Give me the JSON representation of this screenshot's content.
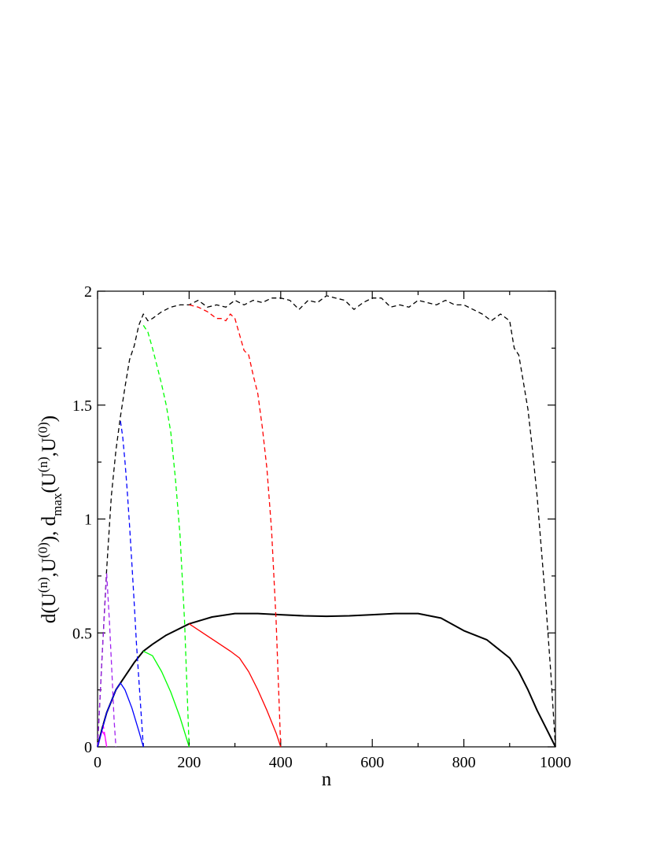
{
  "chart_data": {
    "type": "line",
    "title": "",
    "xlabel": "n",
    "ylabel_parts": [
      "d(U",
      "(n)",
      ",U",
      "(0)",
      "), d",
      "max",
      "(U",
      "(n)",
      ",U",
      "(0)",
      ")"
    ],
    "xlim": [
      0,
      1000
    ],
    "ylim": [
      0,
      2
    ],
    "x_ticks": [
      0,
      200,
      400,
      600,
      800,
      1000
    ],
    "y_ticks": [
      0,
      0.5,
      1,
      1.5,
      2
    ],
    "x_tick_labels": [
      "0",
      "200",
      "400",
      "600",
      "800",
      "1000"
    ],
    "y_tick_labels": [
      "0",
      "0.5",
      "1",
      "1.5",
      "2"
    ],
    "grid": false,
    "legend": "none",
    "series": [
      {
        "color": "#000000",
        "style": "solid",
        "x": [
          0,
          10,
          20,
          30,
          40,
          50,
          60,
          80,
          100,
          120,
          150,
          200,
          250,
          300,
          350,
          400,
          450,
          500,
          550,
          600,
          650,
          700,
          750,
          800,
          850,
          900,
          920,
          940,
          960,
          980,
          1000
        ],
        "y": [
          0,
          0.08,
          0.15,
          0.2,
          0.25,
          0.28,
          0.31,
          0.37,
          0.42,
          0.45,
          0.49,
          0.54,
          0.57,
          0.585,
          0.585,
          0.58,
          0.575,
          0.573,
          0.575,
          0.58,
          0.585,
          0.585,
          0.565,
          0.51,
          0.47,
          0.39,
          0.33,
          0.25,
          0.16,
          0.08,
          0
        ]
      },
      {
        "color": "#000000",
        "style": "dashed",
        "x": [
          0,
          10,
          20,
          30,
          40,
          50,
          60,
          70,
          80,
          90,
          100,
          110,
          120,
          140,
          160,
          180,
          200,
          220,
          240,
          260,
          280,
          300,
          320,
          340,
          360,
          380,
          400,
          420,
          440,
          460,
          480,
          500,
          520,
          540,
          560,
          580,
          600,
          620,
          640,
          660,
          680,
          700,
          720,
          740,
          760,
          780,
          800,
          820,
          840,
          860,
          880,
          900,
          910,
          920,
          930,
          940,
          950,
          960,
          970,
          980,
          990,
          1000
        ],
        "y": [
          0,
          0.4,
          0.78,
          1.1,
          1.3,
          1.45,
          1.58,
          1.7,
          1.76,
          1.85,
          1.9,
          1.87,
          1.88,
          1.91,
          1.93,
          1.94,
          1.94,
          1.96,
          1.93,
          1.94,
          1.93,
          1.96,
          1.94,
          1.96,
          1.95,
          1.97,
          1.97,
          1.96,
          1.92,
          1.96,
          1.95,
          1.98,
          1.97,
          1.96,
          1.92,
          1.95,
          1.97,
          1.97,
          1.93,
          1.94,
          1.93,
          1.96,
          1.95,
          1.94,
          1.96,
          1.94,
          1.94,
          1.92,
          1.9,
          1.87,
          1.9,
          1.87,
          1.75,
          1.72,
          1.6,
          1.48,
          1.3,
          1.1,
          0.85,
          0.6,
          0.32,
          0
        ]
      },
      {
        "color": "#ff00ff",
        "style": "solid",
        "x": [
          0,
          10,
          16,
          20
        ],
        "y": [
          0,
          0.07,
          0.05,
          0
        ]
      },
      {
        "color": "#a020f0",
        "style": "dashed",
        "x": [
          0,
          10,
          20,
          26,
          32,
          36,
          40
        ],
        "y": [
          0,
          0.4,
          0.76,
          0.55,
          0.3,
          0.12,
          0
        ]
      },
      {
        "color": "#ff00ff",
        "style": "dashed",
        "x": [
          12,
          16,
          20
        ],
        "y": [
          0.1,
          0.05,
          0
        ]
      },
      {
        "color": "#0000ff",
        "style": "solid",
        "x": [
          0,
          20,
          40,
          50,
          60,
          75,
          90,
          100
        ],
        "y": [
          0,
          0.15,
          0.25,
          0.28,
          0.25,
          0.17,
          0.07,
          0
        ]
      },
      {
        "color": "#0000ff",
        "style": "dashed",
        "x": [
          50,
          55,
          60,
          65,
          70,
          75,
          80,
          85,
          90,
          95,
          100
        ],
        "y": [
          1.43,
          1.36,
          1.25,
          1.12,
          0.97,
          0.8,
          0.63,
          0.45,
          0.3,
          0.15,
          0
        ]
      },
      {
        "color": "#00ff00",
        "style": "solid",
        "x": [
          100,
          120,
          140,
          160,
          180,
          200
        ],
        "y": [
          0.42,
          0.4,
          0.33,
          0.24,
          0.13,
          0
        ]
      },
      {
        "color": "#00ff00",
        "style": "dashed",
        "x": [
          100,
          110,
          120,
          130,
          140,
          150,
          160,
          170,
          180,
          190,
          200
        ],
        "y": [
          1.85,
          1.82,
          1.75,
          1.67,
          1.59,
          1.5,
          1.38,
          1.18,
          0.93,
          0.55,
          0
        ]
      },
      {
        "color": "#ff0000",
        "style": "solid",
        "x": [
          200,
          230,
          260,
          290,
          310,
          330,
          350,
          370,
          390,
          400
        ],
        "y": [
          0.54,
          0.5,
          0.46,
          0.42,
          0.39,
          0.33,
          0.25,
          0.16,
          0.06,
          0
        ]
      },
      {
        "color": "#ff0000",
        "style": "dashed",
        "x": [
          200,
          220,
          240,
          260,
          270,
          280,
          290,
          300,
          310,
          320,
          330,
          340,
          350,
          360,
          370,
          380,
          390,
          400
        ],
        "y": [
          1.94,
          1.93,
          1.91,
          1.88,
          1.88,
          1.87,
          1.9,
          1.88,
          1.81,
          1.74,
          1.72,
          1.63,
          1.55,
          1.4,
          1.22,
          0.95,
          0.55,
          0
        ]
      }
    ]
  }
}
